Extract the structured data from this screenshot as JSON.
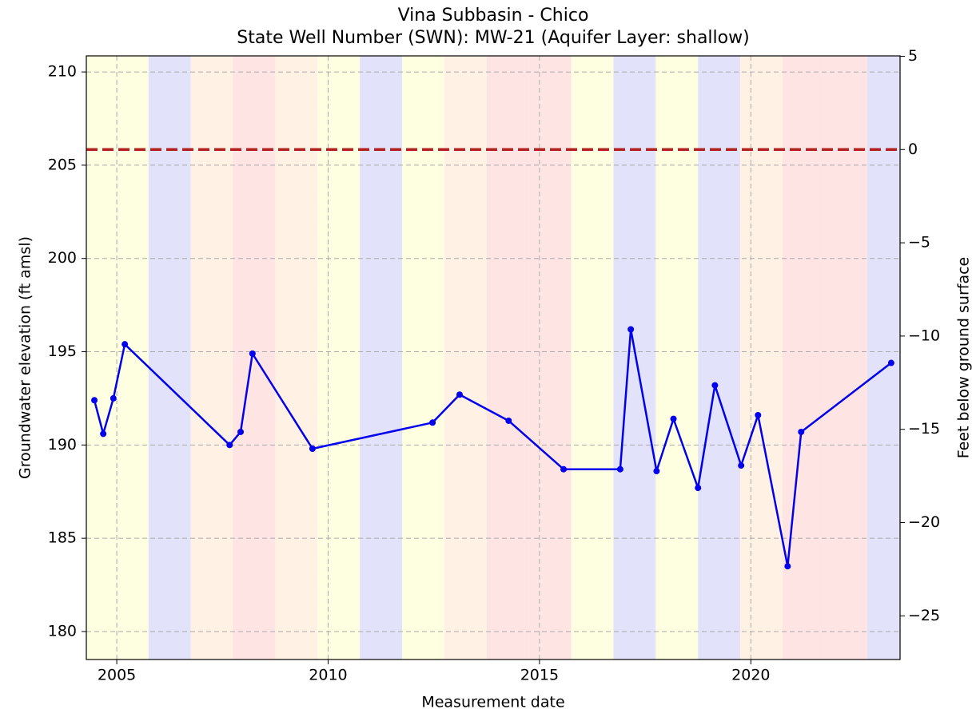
{
  "chart_data": {
    "type": "line",
    "title": "Vina Subbasin - Chico",
    "subtitle": "State Well Number (SWN): MW-21 (Aquifer Layer: shallow)",
    "x_label": "Measurement date",
    "y_label": "Groundwater elevation (ft amsl)",
    "y2_label": "Feet below ground surface",
    "xlim": [
      2004.28,
      2023.53
    ],
    "xticks": [
      2005,
      2010,
      2015,
      2020
    ],
    "ylim": [
      178.5,
      210.86
    ],
    "yticks": [
      180,
      185,
      190,
      195,
      200,
      205,
      210
    ],
    "y2lim": [
      -27.34,
      5.02
    ],
    "y2ticks": [
      {
        "value": -25,
        "label": "−25"
      },
      {
        "value": -20,
        "label": "−20"
      },
      {
        "value": -15,
        "label": "−15"
      },
      {
        "value": -10,
        "label": "−10"
      },
      {
        "value": -5,
        "label": "−5"
      },
      0,
      5
    ],
    "grid": true,
    "series": [
      {
        "name": "MW-21",
        "color": "#0000ee",
        "x": [
          2004.47,
          2004.68,
          2004.92,
          2005.19,
          2007.67,
          2007.93,
          2008.21,
          2009.63,
          2012.47,
          2013.11,
          2014.27,
          2015.57,
          2016.91,
          2017.16,
          2017.77,
          2018.17,
          2018.75,
          2019.15,
          2019.77,
          2020.17,
          2020.87,
          2021.19,
          2023.32
        ],
        "values": [
          192.4,
          190.6,
          192.5,
          195.4,
          190.0,
          190.7,
          194.9,
          189.8,
          191.2,
          192.7,
          191.3,
          188.7,
          188.7,
          196.2,
          188.6,
          191.4,
          187.7,
          193.2,
          188.9,
          191.6,
          183.5,
          190.7,
          194.4
        ]
      }
    ],
    "reference_line": {
      "value": 0,
      "axis": "y2",
      "color": "#b22222"
    },
    "bands": [
      {
        "start": 2003.75,
        "end": 2004.75,
        "color": "#fefee0"
      },
      {
        "start": 2004.75,
        "end": 2005.75,
        "color": "#fefee0"
      },
      {
        "start": 2005.75,
        "end": 2006.75,
        "color": "#e2e2fb"
      },
      {
        "start": 2006.75,
        "end": 2007.75,
        "color": "#fff2e4"
      },
      {
        "start": 2007.75,
        "end": 2008.75,
        "color": "#ffe4e4"
      },
      {
        "start": 2008.75,
        "end": 2009.75,
        "color": "#fff2e4"
      },
      {
        "start": 2009.75,
        "end": 2010.75,
        "color": "#fefee0"
      },
      {
        "start": 2010.75,
        "end": 2011.75,
        "color": "#e2e2fb"
      },
      {
        "start": 2011.75,
        "end": 2012.75,
        "color": "#fefee0"
      },
      {
        "start": 2012.75,
        "end": 2013.75,
        "color": "#fff2e4"
      },
      {
        "start": 2013.75,
        "end": 2014.75,
        "color": "#ffe4e4"
      },
      {
        "start": 2014.75,
        "end": 2015.75,
        "color": "#ffe4e4"
      },
      {
        "start": 2015.75,
        "end": 2016.75,
        "color": "#fefee0"
      },
      {
        "start": 2016.75,
        "end": 2017.75,
        "color": "#e2e2fb"
      },
      {
        "start": 2017.75,
        "end": 2018.75,
        "color": "#fefee0"
      },
      {
        "start": 2018.75,
        "end": 2019.75,
        "color": "#e2e2fb"
      },
      {
        "start": 2019.75,
        "end": 2020.75,
        "color": "#fff2e4"
      },
      {
        "start": 2020.75,
        "end": 2021.75,
        "color": "#ffe4e4"
      },
      {
        "start": 2021.75,
        "end": 2022.75,
        "color": "#ffe4e4"
      },
      {
        "start": 2022.75,
        "end": 2023.75,
        "color": "#e2e2fb"
      }
    ]
  }
}
